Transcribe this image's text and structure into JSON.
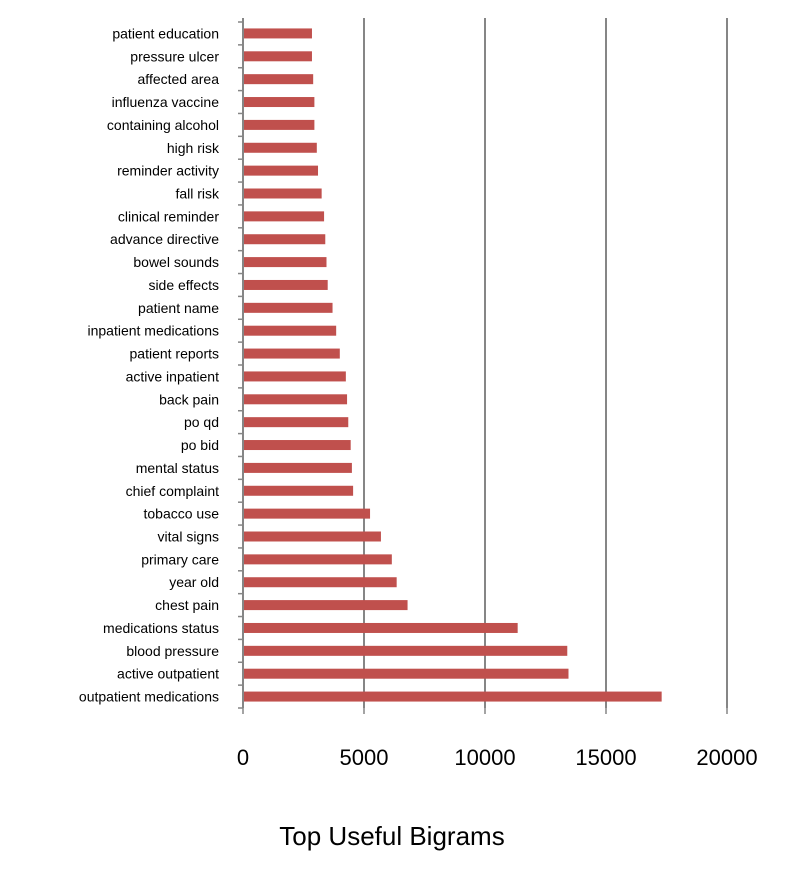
{
  "chart_data": {
    "type": "bar",
    "orientation": "horizontal",
    "title": "Top Useful Bigrams",
    "xlabel": "",
    "ylabel": "",
    "xlim": [
      0,
      20000
    ],
    "x_ticks": [
      0,
      5000,
      10000,
      15000,
      20000
    ],
    "grid": "vertical",
    "bar_color": "#c0504d",
    "grid_color": "#868686",
    "categories": [
      "outpatient medications",
      "active outpatient",
      "blood pressure",
      "medications status",
      "chest pain",
      "year old",
      "primary care",
      "vital signs",
      "tobacco use",
      "chief complaint",
      "mental status",
      "po bid",
      "po qd",
      "back pain",
      "active inpatient",
      "patient reports",
      "inpatient medications",
      "patient name",
      "side effects",
      "bowel sounds",
      "advance directive",
      "clinical reminder",
      "fall risk",
      "reminder activity",
      "high risk",
      "containing alcohol",
      "influenza vaccine",
      "affected area",
      "pressure ulcer",
      "patient education"
    ],
    "values": [
      17300,
      13450,
      13400,
      11350,
      6800,
      6350,
      6150,
      5700,
      5250,
      4550,
      4500,
      4450,
      4350,
      4300,
      4250,
      4000,
      3850,
      3700,
      3500,
      3450,
      3400,
      3350,
      3250,
      3100,
      3050,
      2950,
      2950,
      2900,
      2850,
      2850
    ]
  }
}
